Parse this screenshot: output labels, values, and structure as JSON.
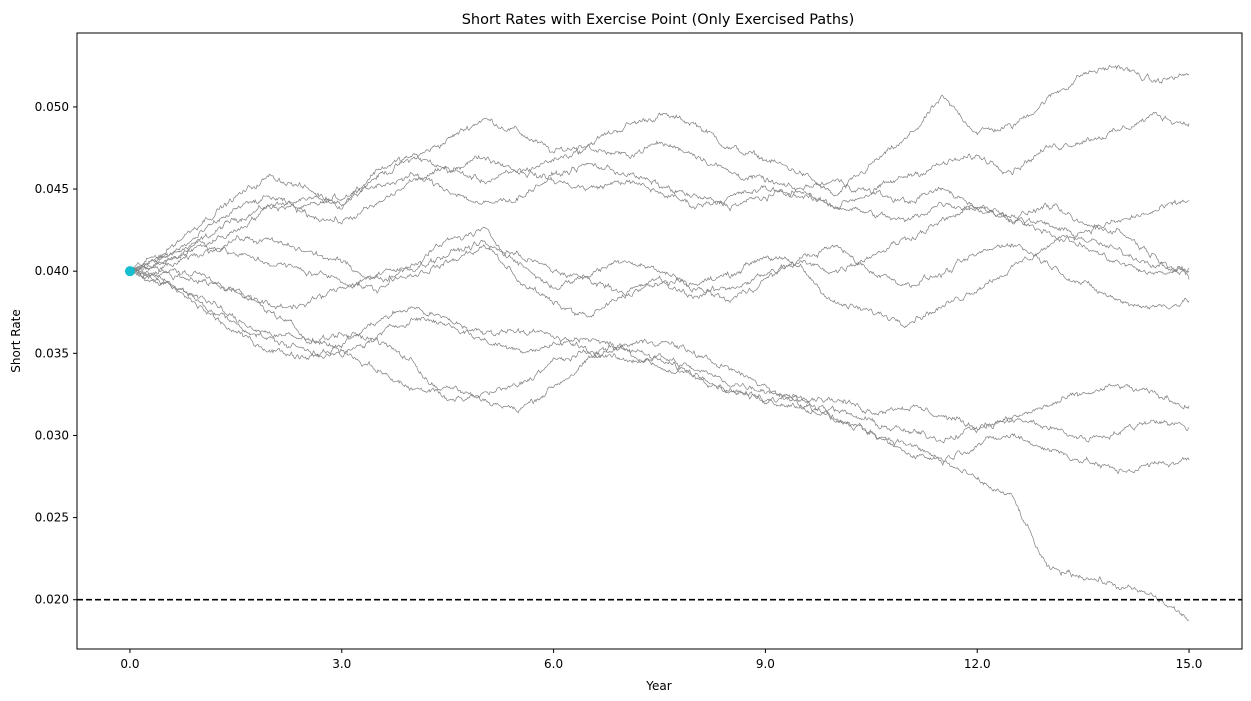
{
  "chart_data": {
    "type": "line",
    "title": "Short Rates with Exercise Point (Only Exercised Paths)",
    "xlabel": "Year",
    "ylabel": "Short Rate",
    "xlim": [
      -0.75,
      15.75
    ],
    "ylim": [
      0.017,
      0.0545
    ],
    "xticks": [
      0,
      3,
      6,
      9,
      12,
      15
    ],
    "xtick_labels": [
      "0.0",
      "3.0",
      "6.0",
      "9.0",
      "12.0",
      "15.0"
    ],
    "yticks": [
      0.02,
      0.025,
      0.03,
      0.035,
      0.04,
      0.045,
      0.05
    ],
    "ytick_labels": [
      "0.020",
      "0.025",
      "0.030",
      "0.035",
      "0.040",
      "0.045",
      "0.050"
    ],
    "grid": false,
    "line_color": "#808080",
    "threshold": {
      "y": 0.02,
      "style": "dashed",
      "color": "#000000"
    },
    "exercise_point": {
      "x": 0.0,
      "y": 0.04,
      "color": "#17becf"
    },
    "series": [
      {
        "x": [
          0,
          0.5,
          1,
          1.5,
          2,
          2.5,
          3,
          3.5,
          4,
          4.5,
          5,
          5.5,
          6,
          6.5,
          7,
          7.5,
          8,
          8.5,
          9,
          9.5,
          10,
          10.5,
          11,
          11.5,
          12,
          12.5,
          13,
          13.5,
          14,
          14.5,
          15
        ],
        "y": [
          0.04,
          0.0405,
          0.0418,
          0.0432,
          0.044,
          0.0438,
          0.0445,
          0.0458,
          0.0468,
          0.048,
          0.0493,
          0.0485,
          0.0472,
          0.0478,
          0.0488,
          0.0495,
          0.049,
          0.0475,
          0.0468,
          0.046,
          0.0445,
          0.0465,
          0.048,
          0.0505,
          0.0485,
          0.0488,
          0.0505,
          0.052,
          0.0525,
          0.0515,
          0.052
        ]
      },
      {
        "x": [
          0,
          0.5,
          1,
          1.5,
          2,
          2.5,
          3,
          3.5,
          4,
          4.5,
          5,
          5.5,
          6,
          6.5,
          7,
          7.5,
          8,
          8.5,
          9,
          9.5,
          10,
          10.5,
          11,
          11.5,
          12,
          12.5,
          13,
          13.5,
          14,
          14.5,
          15
        ],
        "y": [
          0.04,
          0.0412,
          0.043,
          0.0445,
          0.0458,
          0.045,
          0.044,
          0.0462,
          0.047,
          0.0462,
          0.0455,
          0.046,
          0.0468,
          0.0475,
          0.047,
          0.0478,
          0.0472,
          0.046,
          0.0455,
          0.0448,
          0.044,
          0.0448,
          0.0458,
          0.0465,
          0.047,
          0.0462,
          0.0475,
          0.048,
          0.0485,
          0.0495,
          0.049
        ]
      },
      {
        "x": [
          0,
          0.5,
          1,
          1.5,
          2,
          2.5,
          3,
          3.5,
          4,
          4.5,
          5,
          5.5,
          6,
          6.5,
          7,
          7.5,
          8,
          8.5,
          9,
          9.5,
          10,
          10.5,
          11,
          11.5,
          12,
          12.5,
          13,
          13.5,
          14,
          14.5,
          15
        ],
        "y": [
          0.04,
          0.0408,
          0.0422,
          0.0438,
          0.0445,
          0.0435,
          0.043,
          0.044,
          0.0455,
          0.0462,
          0.047,
          0.0462,
          0.0455,
          0.045,
          0.0455,
          0.0448,
          0.044,
          0.0445,
          0.045,
          0.0446,
          0.044,
          0.0435,
          0.043,
          0.0442,
          0.0438,
          0.0432,
          0.0428,
          0.042,
          0.0412,
          0.0405,
          0.04
        ]
      },
      {
        "x": [
          0,
          0.5,
          1,
          1.5,
          2,
          2.5,
          3,
          3.5,
          4,
          4.5,
          5,
          5.5,
          6,
          6.5,
          7,
          7.5,
          8,
          8.5,
          9,
          9.5,
          10,
          10.5,
          11,
          11.5,
          12,
          12.5,
          13,
          13.5,
          14,
          14.5,
          15
        ],
        "y": [
          0.04,
          0.0405,
          0.0415,
          0.0425,
          0.044,
          0.0445,
          0.0442,
          0.0452,
          0.0458,
          0.045,
          0.044,
          0.0445,
          0.0458,
          0.0465,
          0.046,
          0.0452,
          0.0445,
          0.044,
          0.0445,
          0.045,
          0.0455,
          0.0448,
          0.0442,
          0.045,
          0.044,
          0.0432,
          0.044,
          0.0428,
          0.0425,
          0.041,
          0.0395
        ]
      },
      {
        "x": [
          0,
          0.5,
          1,
          1.5,
          2,
          2.5,
          3,
          3.5,
          4,
          4.5,
          5,
          5.5,
          6,
          6.5,
          7,
          7.5,
          8,
          8.5,
          9,
          9.5,
          10,
          10.5,
          11,
          11.5,
          12,
          12.5,
          13,
          13.5,
          14,
          14.5,
          15
        ],
        "y": [
          0.04,
          0.041,
          0.0418,
          0.041,
          0.0405,
          0.04,
          0.0395,
          0.0388,
          0.0405,
          0.0418,
          0.0425,
          0.0405,
          0.039,
          0.0398,
          0.0408,
          0.04,
          0.0392,
          0.0398,
          0.041,
          0.0402,
          0.038,
          0.0375,
          0.037,
          0.0378,
          0.039,
          0.0402,
          0.0415,
          0.0425,
          0.043,
          0.0436,
          0.0443
        ]
      },
      {
        "x": [
          0,
          0.5,
          1,
          1.5,
          2,
          2.5,
          3,
          3.5,
          4,
          4.5,
          5,
          5.5,
          6,
          6.5,
          7,
          7.5,
          8,
          8.5,
          9,
          9.5,
          10,
          10.5,
          11,
          11.5,
          12,
          12.5,
          13,
          13.5,
          14,
          14.5,
          15
        ],
        "y": [
          0.04,
          0.0402,
          0.041,
          0.042,
          0.0418,
          0.0412,
          0.0405,
          0.0395,
          0.0398,
          0.0405,
          0.0415,
          0.041,
          0.04,
          0.0395,
          0.0388,
          0.0392,
          0.0385,
          0.039,
          0.0398,
          0.0405,
          0.04,
          0.041,
          0.042,
          0.043,
          0.044,
          0.0432,
          0.0425,
          0.0415,
          0.0405,
          0.0398,
          0.0402
        ]
      },
      {
        "x": [
          0,
          0.5,
          1,
          1.5,
          2,
          2.5,
          3,
          3.5,
          4,
          4.5,
          5,
          5.5,
          6,
          6.5,
          7,
          7.5,
          8,
          8.5,
          9,
          9.5,
          10,
          10.5,
          11,
          11.5,
          12,
          12.5,
          13,
          13.5,
          14,
          14.5,
          15
        ],
        "y": [
          0.04,
          0.0398,
          0.0395,
          0.0388,
          0.0378,
          0.038,
          0.039,
          0.0398,
          0.0402,
          0.041,
          0.0418,
          0.0395,
          0.038,
          0.0372,
          0.0385,
          0.0395,
          0.039,
          0.0382,
          0.0395,
          0.0408,
          0.0415,
          0.04,
          0.0392,
          0.0398,
          0.041,
          0.0418,
          0.0405,
          0.0392,
          0.0382,
          0.0378,
          0.0382
        ]
      },
      {
        "x": [
          0,
          0.5,
          1,
          1.5,
          2,
          2.5,
          3,
          3.5,
          4,
          4.5,
          5,
          5.5,
          6,
          6.5,
          7,
          7.5,
          8,
          8.5,
          9,
          9.5,
          10,
          10.5,
          11,
          11.5,
          12,
          12.5,
          13,
          13.5,
          14,
          14.5,
          15
        ],
        "y": [
          0.04,
          0.0395,
          0.038,
          0.0368,
          0.0358,
          0.0352,
          0.0348,
          0.036,
          0.0372,
          0.0368,
          0.0358,
          0.0352,
          0.0355,
          0.036,
          0.0352,
          0.0342,
          0.0335,
          0.0328,
          0.032,
          0.0325,
          0.0322,
          0.0315,
          0.0318,
          0.0312,
          0.0305,
          0.031,
          0.0318,
          0.0325,
          0.033,
          0.0325,
          0.0318
        ]
      },
      {
        "x": [
          0,
          0.5,
          1,
          1.5,
          2,
          2.5,
          3,
          3.5,
          4,
          4.5,
          5,
          5.5,
          6,
          6.5,
          7,
          7.5,
          8,
          8.5,
          9,
          9.5,
          10,
          10.5,
          11,
          11.5,
          12,
          12.5,
          13,
          13.5,
          14,
          14.5,
          15
        ],
        "y": [
          0.04,
          0.0392,
          0.0378,
          0.0362,
          0.0352,
          0.0348,
          0.0355,
          0.037,
          0.0378,
          0.037,
          0.0362,
          0.0365,
          0.036,
          0.0352,
          0.0345,
          0.0348,
          0.034,
          0.0332,
          0.0328,
          0.0322,
          0.0315,
          0.0308,
          0.0302,
          0.0298,
          0.0305,
          0.031,
          0.0305,
          0.0298,
          0.0302,
          0.031,
          0.0305
        ]
      },
      {
        "x": [
          0,
          0.5,
          1,
          1.5,
          2,
          2.5,
          3,
          3.5,
          4,
          4.5,
          5,
          5.5,
          6,
          6.5,
          7,
          7.5,
          8,
          8.5,
          9,
          9.5,
          10,
          10.5,
          11,
          11.5,
          12,
          12.5,
          13,
          13.5,
          14,
          14.5,
          15
        ],
        "y": [
          0.04,
          0.0392,
          0.0385,
          0.037,
          0.0362,
          0.0358,
          0.0362,
          0.0358,
          0.0345,
          0.032,
          0.0325,
          0.033,
          0.0345,
          0.035,
          0.0355,
          0.0358,
          0.035,
          0.034,
          0.033,
          0.032,
          0.031,
          0.03,
          0.029,
          0.0285,
          0.0295,
          0.03,
          0.0292,
          0.0285,
          0.0278,
          0.0282,
          0.0285
        ]
      },
      {
        "x": [
          0,
          0.5,
          1,
          1.5,
          2,
          2.5,
          3,
          3.5,
          4,
          4.5,
          5,
          5.5,
          6,
          6.5,
          7,
          7.5,
          8,
          8.5,
          9,
          9.5,
          10,
          10.5,
          11,
          11.5,
          12,
          12.5,
          13,
          13.5,
          14,
          14.5,
          15
        ],
        "y": [
          0.04,
          0.04,
          0.0398,
          0.0388,
          0.0375,
          0.036,
          0.0352,
          0.034,
          0.0328,
          0.033,
          0.0322,
          0.0315,
          0.033,
          0.0345,
          0.0355,
          0.0345,
          0.0338,
          0.0328,
          0.0322,
          0.0318,
          0.031,
          0.0302,
          0.0295,
          0.0285,
          0.0272,
          0.0262,
          0.0218,
          0.0215,
          0.0208,
          0.0202,
          0.0188
        ]
      }
    ]
  }
}
